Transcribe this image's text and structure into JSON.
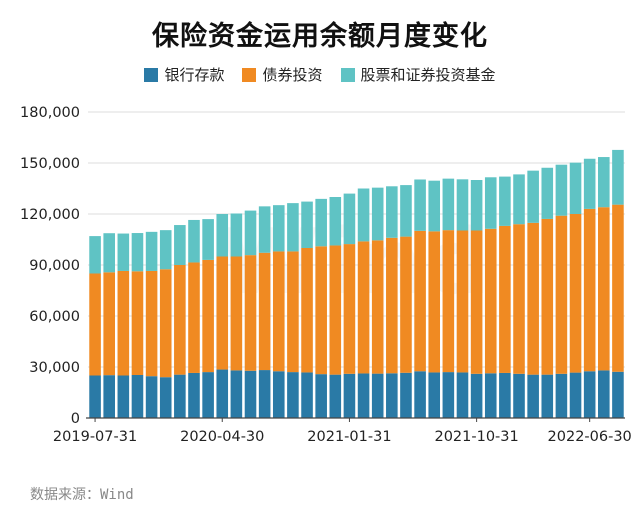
{
  "page": {
    "title": "保险资金运用余额月度变化",
    "source": "数据来源：Wind",
    "watermark": "Wind"
  },
  "colors": {
    "bank_deposits": "#2a7aa6",
    "bonds": "#f08a22",
    "stocks_funds": "#5fc3c4",
    "grid": "#dddddd",
    "axis": "#444444"
  },
  "chart_data": {
    "type": "bar",
    "stacked": true,
    "title": "保险资金运用余额月度变化",
    "xlabel": "",
    "ylabel": "",
    "ylim": [
      0,
      180000
    ],
    "yticks": [
      0,
      30000,
      60000,
      90000,
      120000,
      150000,
      180000
    ],
    "ytick_labels": [
      "0",
      "30,000",
      "60,000",
      "90,000",
      "120,000",
      "150,000",
      "180,000"
    ],
    "x_tick_labels": [
      {
        "index": 0,
        "label": "2019-07-31"
      },
      {
        "index": 9,
        "label": "2020-04-30"
      },
      {
        "index": 18,
        "label": "2021-01-31"
      },
      {
        "index": 27,
        "label": "2021-10-31"
      },
      {
        "index": 35,
        "label": "2022-06-30"
      }
    ],
    "grid": true,
    "legend_position": "top-center",
    "categories": [
      "2019-07-31",
      "2019-08-31",
      "2019-09-30",
      "2019-10-31",
      "2019-11-30",
      "2019-12-31",
      "2020-01-31",
      "2020-02-29",
      "2020-03-31",
      "2020-04-30",
      "2020-05-31",
      "2020-06-30",
      "2020-07-31",
      "2020-08-31",
      "2020-09-30",
      "2020-10-31",
      "2020-11-30",
      "2020-12-31",
      "2021-01-31",
      "2021-02-28",
      "2021-03-31",
      "2021-04-30",
      "2021-05-31",
      "2021-06-30",
      "2021-07-31",
      "2021-08-31",
      "2021-09-30",
      "2021-10-31",
      "2021-11-30",
      "2021-12-31",
      "2022-01-31",
      "2022-02-28",
      "2022-03-31",
      "2022-04-30",
      "2022-05-31",
      "2022-06-30",
      "2022-07-31",
      "2022-08-31"
    ],
    "series": [
      {
        "name": "银行存款",
        "color": "#2a7aa6",
        "values": [
          25000,
          25200,
          25000,
          25300,
          24600,
          24000,
          25500,
          26500,
          27000,
          28500,
          28000,
          27800,
          28200,
          27500,
          27000,
          26800,
          25800,
          25500,
          26000,
          26200,
          26100,
          26300,
          26600,
          27500,
          26800,
          27000,
          26800,
          26000,
          26300,
          26500,
          26000,
          25500,
          25500,
          26000,
          26700,
          27500,
          28000,
          27200
        ]
      },
      {
        "name": "债券投资",
        "color": "#f08a22",
        "values": [
          60000,
          60500,
          61500,
          61000,
          61900,
          63500,
          64500,
          65000,
          66000,
          66500,
          67000,
          68000,
          69000,
          70500,
          71000,
          73200,
          75200,
          76000,
          76300,
          77700,
          78400,
          79700,
          80100,
          82600,
          83000,
          83500,
          83500,
          84300,
          85000,
          86500,
          88000,
          89300,
          91600,
          93000,
          93300,
          95500,
          96000,
          98300
        ]
      },
      {
        "name": "股票和证券投资基金",
        "color": "#5fc3c4",
        "values": [
          22000,
          23000,
          22000,
          22500,
          23000,
          23000,
          23500,
          25000,
          24000,
          25000,
          25300,
          26200,
          27300,
          27200,
          28400,
          27300,
          27900,
          28500,
          29700,
          31100,
          31000,
          30300,
          30300,
          30200,
          29800,
          30300,
          30100,
          29700,
          30300,
          29000,
          29300,
          30700,
          30100,
          30000,
          30200,
          29500,
          29500,
          32200
        ]
      }
    ]
  }
}
